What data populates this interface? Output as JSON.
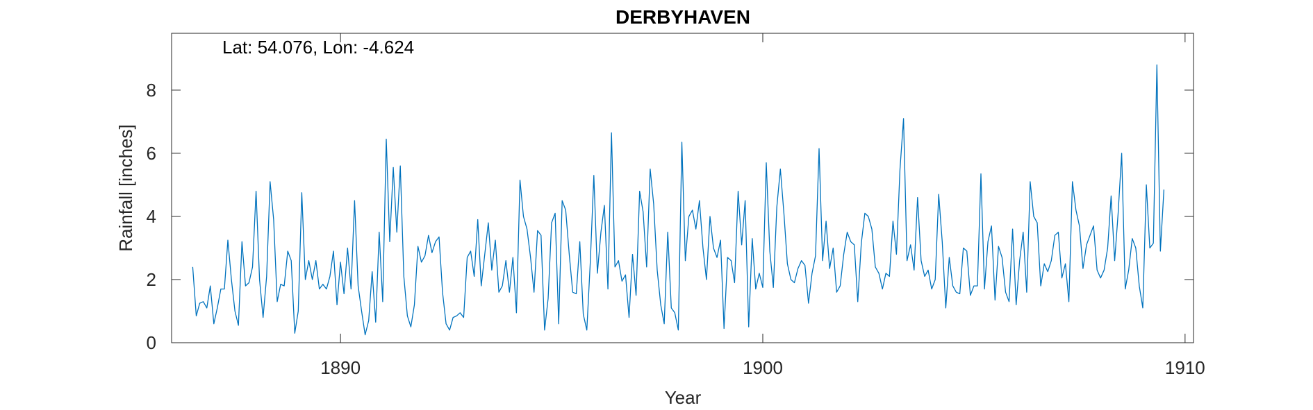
{
  "chart_data": {
    "type": "line",
    "title": "DERBYHAVEN",
    "annotation": "Lat: 54.076, Lon: -4.624",
    "xlabel": "Year",
    "ylabel": "Rainfall [inches]",
    "xlim": [
      1886,
      1910.2
    ],
    "ylim": [
      0,
      9.8
    ],
    "xticks": [
      1890,
      1900,
      1910
    ],
    "yticks": [
      0,
      2,
      4,
      6,
      8
    ],
    "grid": false,
    "line_color": "#0072BD",
    "series": [
      {
        "x_start": 1886.5,
        "x_step": 0.08333,
        "values": [
          2.4,
          0.85,
          1.25,
          1.3,
          1.1,
          1.8,
          0.6,
          1.1,
          1.7,
          1.7,
          3.25,
          2.0,
          1.0,
          0.55,
          3.2,
          1.8,
          1.9,
          2.4,
          4.8,
          2.0,
          0.8,
          2.1,
          5.1,
          3.9,
          1.3,
          1.85,
          1.8,
          2.9,
          2.6,
          0.3,
          1.0,
          4.75,
          2.0,
          2.6,
          2.0,
          2.6,
          1.7,
          1.85,
          1.7,
          2.1,
          2.9,
          1.2,
          2.55,
          1.55,
          3.0,
          1.7,
          4.5,
          1.8,
          1.0,
          0.25,
          0.7,
          2.25,
          0.65,
          3.5,
          1.3,
          6.45,
          3.2,
          5.55,
          3.5,
          5.6,
          2.1,
          0.85,
          0.5,
          1.2,
          3.05,
          2.55,
          2.75,
          3.4,
          2.85,
          3.2,
          3.35,
          1.6,
          0.6,
          0.4,
          0.8,
          0.85,
          0.95,
          0.8,
          2.7,
          2.9,
          2.1,
          3.9,
          1.8,
          2.8,
          3.8,
          2.3,
          3.25,
          1.6,
          1.8,
          2.6,
          1.6,
          2.7,
          0.95,
          5.15,
          4.0,
          3.6,
          2.7,
          1.6,
          3.55,
          3.4,
          0.4,
          1.4,
          3.8,
          4.1,
          0.6,
          4.5,
          4.2,
          2.8,
          1.6,
          1.55,
          3.2,
          0.9,
          0.4,
          2.6,
          5.3,
          2.2,
          3.5,
          4.35,
          1.7,
          6.65,
          2.4,
          2.6,
          1.95,
          2.15,
          0.8,
          2.8,
          1.5,
          4.8,
          4.15,
          2.4,
          5.5,
          4.4,
          2.3,
          1.2,
          0.6,
          3.5,
          1.1,
          0.95,
          0.4,
          6.35,
          2.6,
          4.0,
          4.2,
          3.6,
          4.5,
          3.0,
          2.0,
          4.0,
          3.0,
          2.7,
          3.25,
          0.45,
          2.7,
          2.6,
          1.9,
          4.8,
          3.1,
          4.5,
          0.5,
          3.3,
          1.7,
          2.2,
          1.75,
          5.7,
          2.9,
          1.75,
          4.3,
          5.5,
          4.1,
          2.5,
          2.0,
          1.9,
          2.35,
          2.6,
          2.45,
          1.25,
          2.2,
          2.75,
          6.15,
          2.6,
          3.85,
          2.35,
          3.0,
          1.6,
          1.8,
          2.8,
          3.5,
          3.2,
          3.1,
          1.3,
          3.15,
          4.1,
          4.0,
          3.6,
          2.4,
          2.2,
          1.7,
          2.2,
          2.1,
          3.85,
          2.8,
          5.5,
          7.1,
          2.6,
          3.1,
          2.3,
          4.6,
          2.6,
          2.1,
          2.3,
          1.7,
          2.0,
          4.7,
          3.2,
          1.1,
          2.7,
          1.8,
          1.6,
          1.55,
          3.0,
          2.9,
          1.5,
          1.8,
          1.8,
          5.35,
          1.7,
          3.2,
          3.7,
          1.35,
          3.05,
          2.7,
          1.6,
          1.3,
          3.6,
          1.2,
          2.6,
          3.5,
          1.6,
          5.1,
          4.0,
          3.8,
          1.8,
          2.5,
          2.25,
          2.6,
          3.4,
          3.5,
          2.05,
          2.5,
          1.3,
          5.1,
          4.2,
          3.7,
          2.35,
          3.1,
          3.4,
          3.7,
          2.3,
          2.05,
          2.3,
          3.0,
          4.65,
          2.6,
          4.1,
          6.0,
          1.7,
          2.3,
          3.3,
          3.0,
          1.8,
          1.1,
          5.0,
          3.0,
          3.15,
          8.8,
          2.9,
          4.85
        ]
      }
    ]
  }
}
